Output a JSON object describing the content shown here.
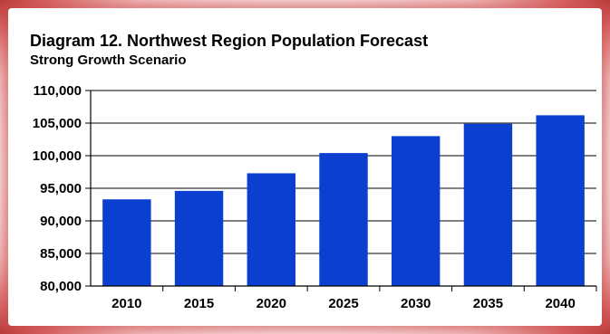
{
  "chart_data": {
    "type": "bar",
    "title": "Diagram 12. Northwest Region Population Forecast",
    "subtitle": "Strong Growth Scenario",
    "categories": [
      "2010",
      "2015",
      "2020",
      "2025",
      "2030",
      "2035",
      "2040"
    ],
    "values": [
      93300,
      94600,
      97300,
      100400,
      103000,
      104900,
      106200
    ],
    "xlabel": "",
    "ylabel": "",
    "ylim": [
      80000,
      110000
    ],
    "yticks": [
      80000,
      85000,
      90000,
      95000,
      100000,
      105000,
      110000
    ],
    "ytick_labels": [
      "80,000",
      "85,000",
      "90,000",
      "95,000",
      "100,000",
      "105,000",
      "110,000"
    ],
    "grid": true,
    "legend": "none",
    "bar_color": "#0a3fd0",
    "frame_color": "#c83c3c"
  }
}
